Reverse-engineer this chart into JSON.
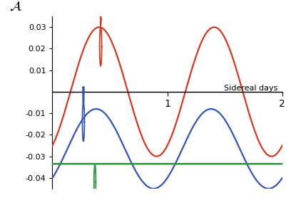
{
  "ylabel": "$\\mathcal{A}$",
  "xlabel": "Sidereal days",
  "xlim": [
    0,
    2
  ],
  "ylim": [
    -0.045,
    0.035
  ],
  "yticks": [
    0.03,
    0.02,
    0.01,
    -0.01,
    -0.02,
    -0.03,
    -0.04
  ],
  "ytick_labels": [
    "0.03",
    "0.02",
    "0.01",
    "-0.01",
    "-0.02",
    "-0.03",
    "-0.04"
  ],
  "xticks": [
    1,
    2
  ],
  "xtick_labels": [
    "1",
    "2"
  ],
  "red_color": "#d63820",
  "blue_color": "#3355bb",
  "green_color": "#229933",
  "black_color": "#000000",
  "background_color": "#ffffff",
  "n_points": 2000,
  "red_amp": 0.03,
  "red_phase": -0.9853,
  "blue_mean": -0.0265,
  "blue_amp": 0.0185,
  "blue_phase": -0.82,
  "green_val": -0.0335
}
